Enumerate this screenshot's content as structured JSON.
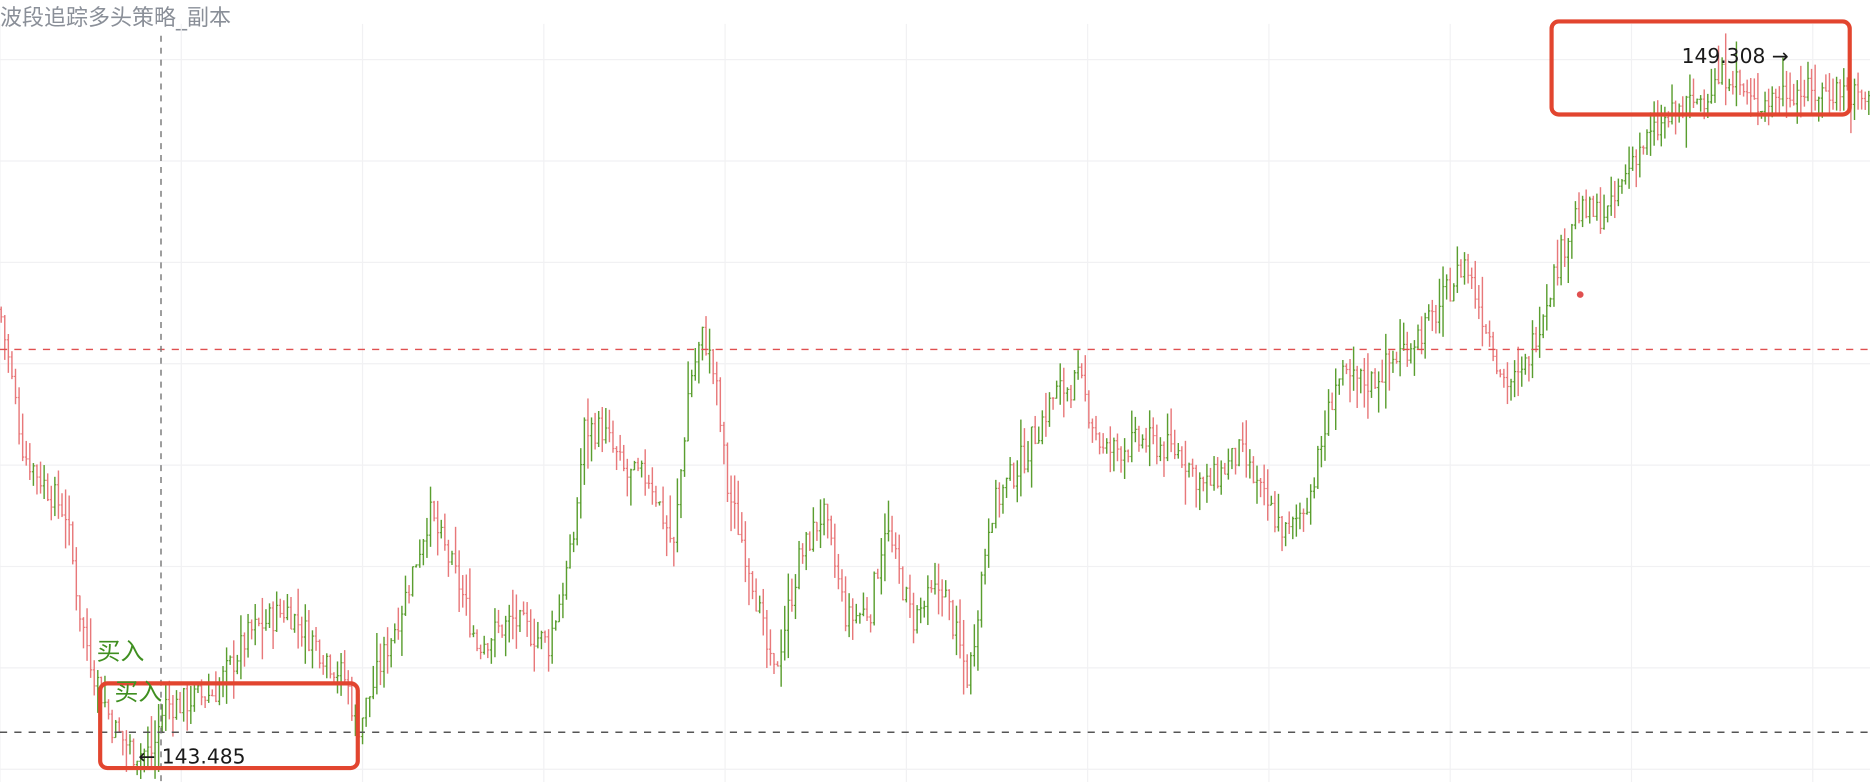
{
  "strategy_title": "波段追踪多头策略_副本",
  "colors": {
    "up": "#5a9e2f",
    "down": "#e8787a",
    "grid": "#f1f1f3",
    "ref_red": "#e05050",
    "ref_gray": "#555555",
    "highlight": "#e2452f",
    "buy_label": "#3f8f20",
    "crosshair": "#777777"
  },
  "annotations": {
    "max_label": "149.308 →",
    "min_label": "← 143.485",
    "buy_label_1": "买入",
    "buy_label_2": "买入"
  },
  "chart_data": {
    "type": "ohlc",
    "title": "波段追踪多头策略_副本",
    "max_price": 149.308,
    "min_price": 143.485,
    "grid": true,
    "series_anchors": [
      [
        0,
        147.2
      ],
      [
        20,
        146.0
      ],
      [
        40,
        145.7
      ],
      [
        55,
        145.5
      ],
      [
        68,
        144.6
      ],
      [
        78,
        144.2
      ],
      [
        95,
        143.7
      ],
      [
        112,
        143.5
      ],
      [
        128,
        143.5
      ],
      [
        138,
        143.9
      ],
      [
        150,
        143.9
      ],
      [
        180,
        144.0
      ],
      [
        210,
        144.5
      ],
      [
        240,
        144.7
      ],
      [
        265,
        144.4
      ],
      [
        290,
        144.1
      ],
      [
        300,
        143.7
      ],
      [
        340,
        144.8
      ],
      [
        360,
        145.5
      ],
      [
        385,
        144.9
      ],
      [
        400,
        144.4
      ],
      [
        430,
        144.6
      ],
      [
        460,
        144.4
      ],
      [
        480,
        145.2
      ],
      [
        490,
        146.2
      ],
      [
        505,
        146.2
      ],
      [
        525,
        145.8
      ],
      [
        545,
        145.8
      ],
      [
        565,
        145.2
      ],
      [
        578,
        146.6
      ],
      [
        590,
        147.0
      ],
      [
        600,
        146.6
      ],
      [
        610,
        145.7
      ],
      [
        630,
        145.0
      ],
      [
        648,
        144.1
      ],
      [
        670,
        145.1
      ],
      [
        690,
        145.5
      ],
      [
        710,
        144.6
      ],
      [
        730,
        144.7
      ],
      [
        742,
        145.4
      ],
      [
        765,
        144.6
      ],
      [
        790,
        144.9
      ],
      [
        812,
        144.1
      ],
      [
        830,
        145.5
      ],
      [
        860,
        146.0
      ],
      [
        885,
        146.5
      ],
      [
        905,
        146.6
      ],
      [
        925,
        146.0
      ],
      [
        960,
        146.1
      ],
      [
        990,
        146.0
      ],
      [
        1010,
        145.7
      ],
      [
        1040,
        146.0
      ],
      [
        1060,
        145.6
      ],
      [
        1080,
        145.3
      ],
      [
        1100,
        145.7
      ],
      [
        1120,
        146.6
      ],
      [
        1150,
        146.6
      ],
      [
        1170,
        146.8
      ],
      [
        1200,
        147.1
      ],
      [
        1228,
        147.6
      ],
      [
        1245,
        147.1
      ],
      [
        1262,
        146.6
      ],
      [
        1275,
        146.6
      ],
      [
        1300,
        147.4
      ],
      [
        1320,
        148.0
      ],
      [
        1350,
        148.0
      ],
      [
        1370,
        148.5
      ],
      [
        1400,
        148.8
      ],
      [
        1430,
        149.0
      ],
      [
        1450,
        149.2
      ],
      [
        1470,
        148.9
      ],
      [
        1500,
        149.05
      ],
      [
        1520,
        149.0
      ],
      [
        1545,
        149.05
      ],
      [
        1570,
        148.9
      ]
    ]
  }
}
